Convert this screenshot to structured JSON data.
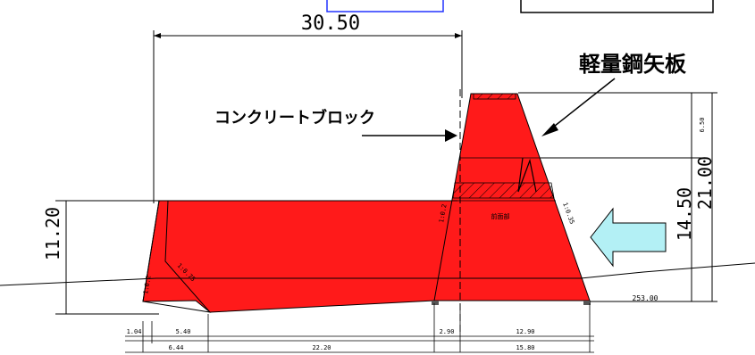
{
  "labels": {
    "sheet_pile": "軽量鋼矢板",
    "concrete_block": "コンクリートブロック",
    "inner_tag": "前面部"
  },
  "dimensions": {
    "top_span": "30.50",
    "left_height": "11.20",
    "total_height": "21.00",
    "mid_height": "14.50",
    "upper_height": "6.50",
    "ground_width": "253.00",
    "slope_right": "1:0.35",
    "slope_mid": "1:0.2",
    "slope_left_a": "1:0.2",
    "slope_left_b": "1:0.75",
    "bottom_row1": [
      "1.04",
      "5.40",
      "2.90",
      "12.90"
    ],
    "bottom_row2": [
      "6.44",
      "22.20",
      "15.80"
    ]
  },
  "colors": {
    "fill_red": "#ff1a1a",
    "arrow_fill": "#b3f0f5",
    "box_outline_blue": "#2233ff"
  }
}
